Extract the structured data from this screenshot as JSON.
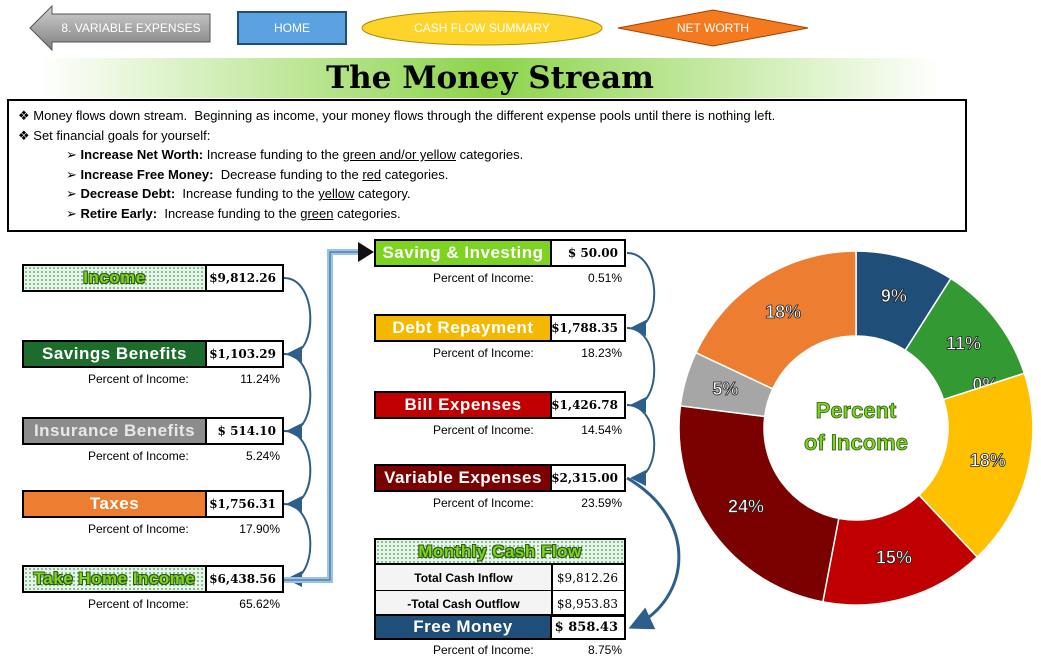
{
  "nav": {
    "back": "8. VARIABLE EXPENSES",
    "home": "HOME",
    "cash_flow": "CASH FLOW SUMMARY",
    "net_worth": "NET WORTH"
  },
  "title": "The Money Stream",
  "notes": {
    "lines": [
      "Money flows down stream.  Beginning as income, your money flows through the different expense pools until there is nothing left.",
      "Set financial goals for yourself:"
    ],
    "goals": [
      {
        "label": "Increase Net Worth:",
        "before": " Increase funding to the ",
        "underlined": "green and/or yellow",
        "after": " categories."
      },
      {
        "label": "Increase Free Money:",
        "before": "  Decrease funding to the ",
        "underlined": "red",
        "after": " categories."
      },
      {
        "label": "Decrease Debt:",
        "before": "  Increase funding to the ",
        "underlined": "yellow",
        "after": " category."
      },
      {
        "label": "Retire Early:",
        "before": "  Increase funding to the ",
        "underlined": "green",
        "after": " categories."
      }
    ]
  },
  "left": [
    {
      "label": "Income",
      "value": "$9,812.26"
    },
    {
      "label": "Savings Benefits",
      "value": "$1,103.29",
      "pct_label": "Percent of Income:",
      "pct": "11.24%"
    },
    {
      "label": "Insurance Benefits",
      "value": "$ 514.10",
      "pct_label": "Percent of Income:",
      "pct": "5.24%"
    },
    {
      "label": "Taxes",
      "value": "$1,756.31",
      "pct_label": "Percent of Income:",
      "pct": "17.90%"
    },
    {
      "label": "Take Home Income",
      "value": "$6,438.56",
      "pct_label": "Percent of Income:",
      "pct": "65.62%"
    }
  ],
  "right": [
    {
      "label": "Saving & Investing",
      "value": "$ 50.00",
      "pct_label": "Percent of Income:",
      "pct": "0.51%"
    },
    {
      "label": "Debt Repayment",
      "value": "$1,788.35",
      "pct_label": "Percent of Income:",
      "pct": "18.23%"
    },
    {
      "label": "Bill Expenses",
      "value": "$1,426.78",
      "pct_label": "Percent of Income:",
      "pct": "14.54%"
    },
    {
      "label": "Variable Expenses",
      "value": "$2,315.00",
      "pct_label": "Percent of Income:",
      "pct": "23.59%"
    }
  ],
  "cash_flow": {
    "title": "Monthly Cash Flow",
    "rows": [
      {
        "label": "Total Cash Inflow",
        "value": "$9,812.26"
      },
      {
        "label": "-Total Cash Outflow",
        "value": "$8,953.83"
      }
    ],
    "free": {
      "label": "Free Money",
      "value": "$ 858.43",
      "pct_label": "Percent of Income:",
      "pct": "8.75%"
    }
  },
  "chart_data": {
    "type": "pie",
    "center_label": [
      "Percent",
      "of Income"
    ],
    "values": [
      9,
      11,
      0,
      18,
      15,
      24,
      5,
      18
    ],
    "value_labels": [
      "9%",
      "11%",
      "0%",
      "18%",
      "15%",
      "24%",
      "5%",
      "18%"
    ],
    "colors": [
      "#1f4e79",
      "#339933",
      "#92d050",
      "#ffc000",
      "#c00000",
      "#7b0000",
      "#a6a6a6",
      "#ed7d31"
    ]
  }
}
